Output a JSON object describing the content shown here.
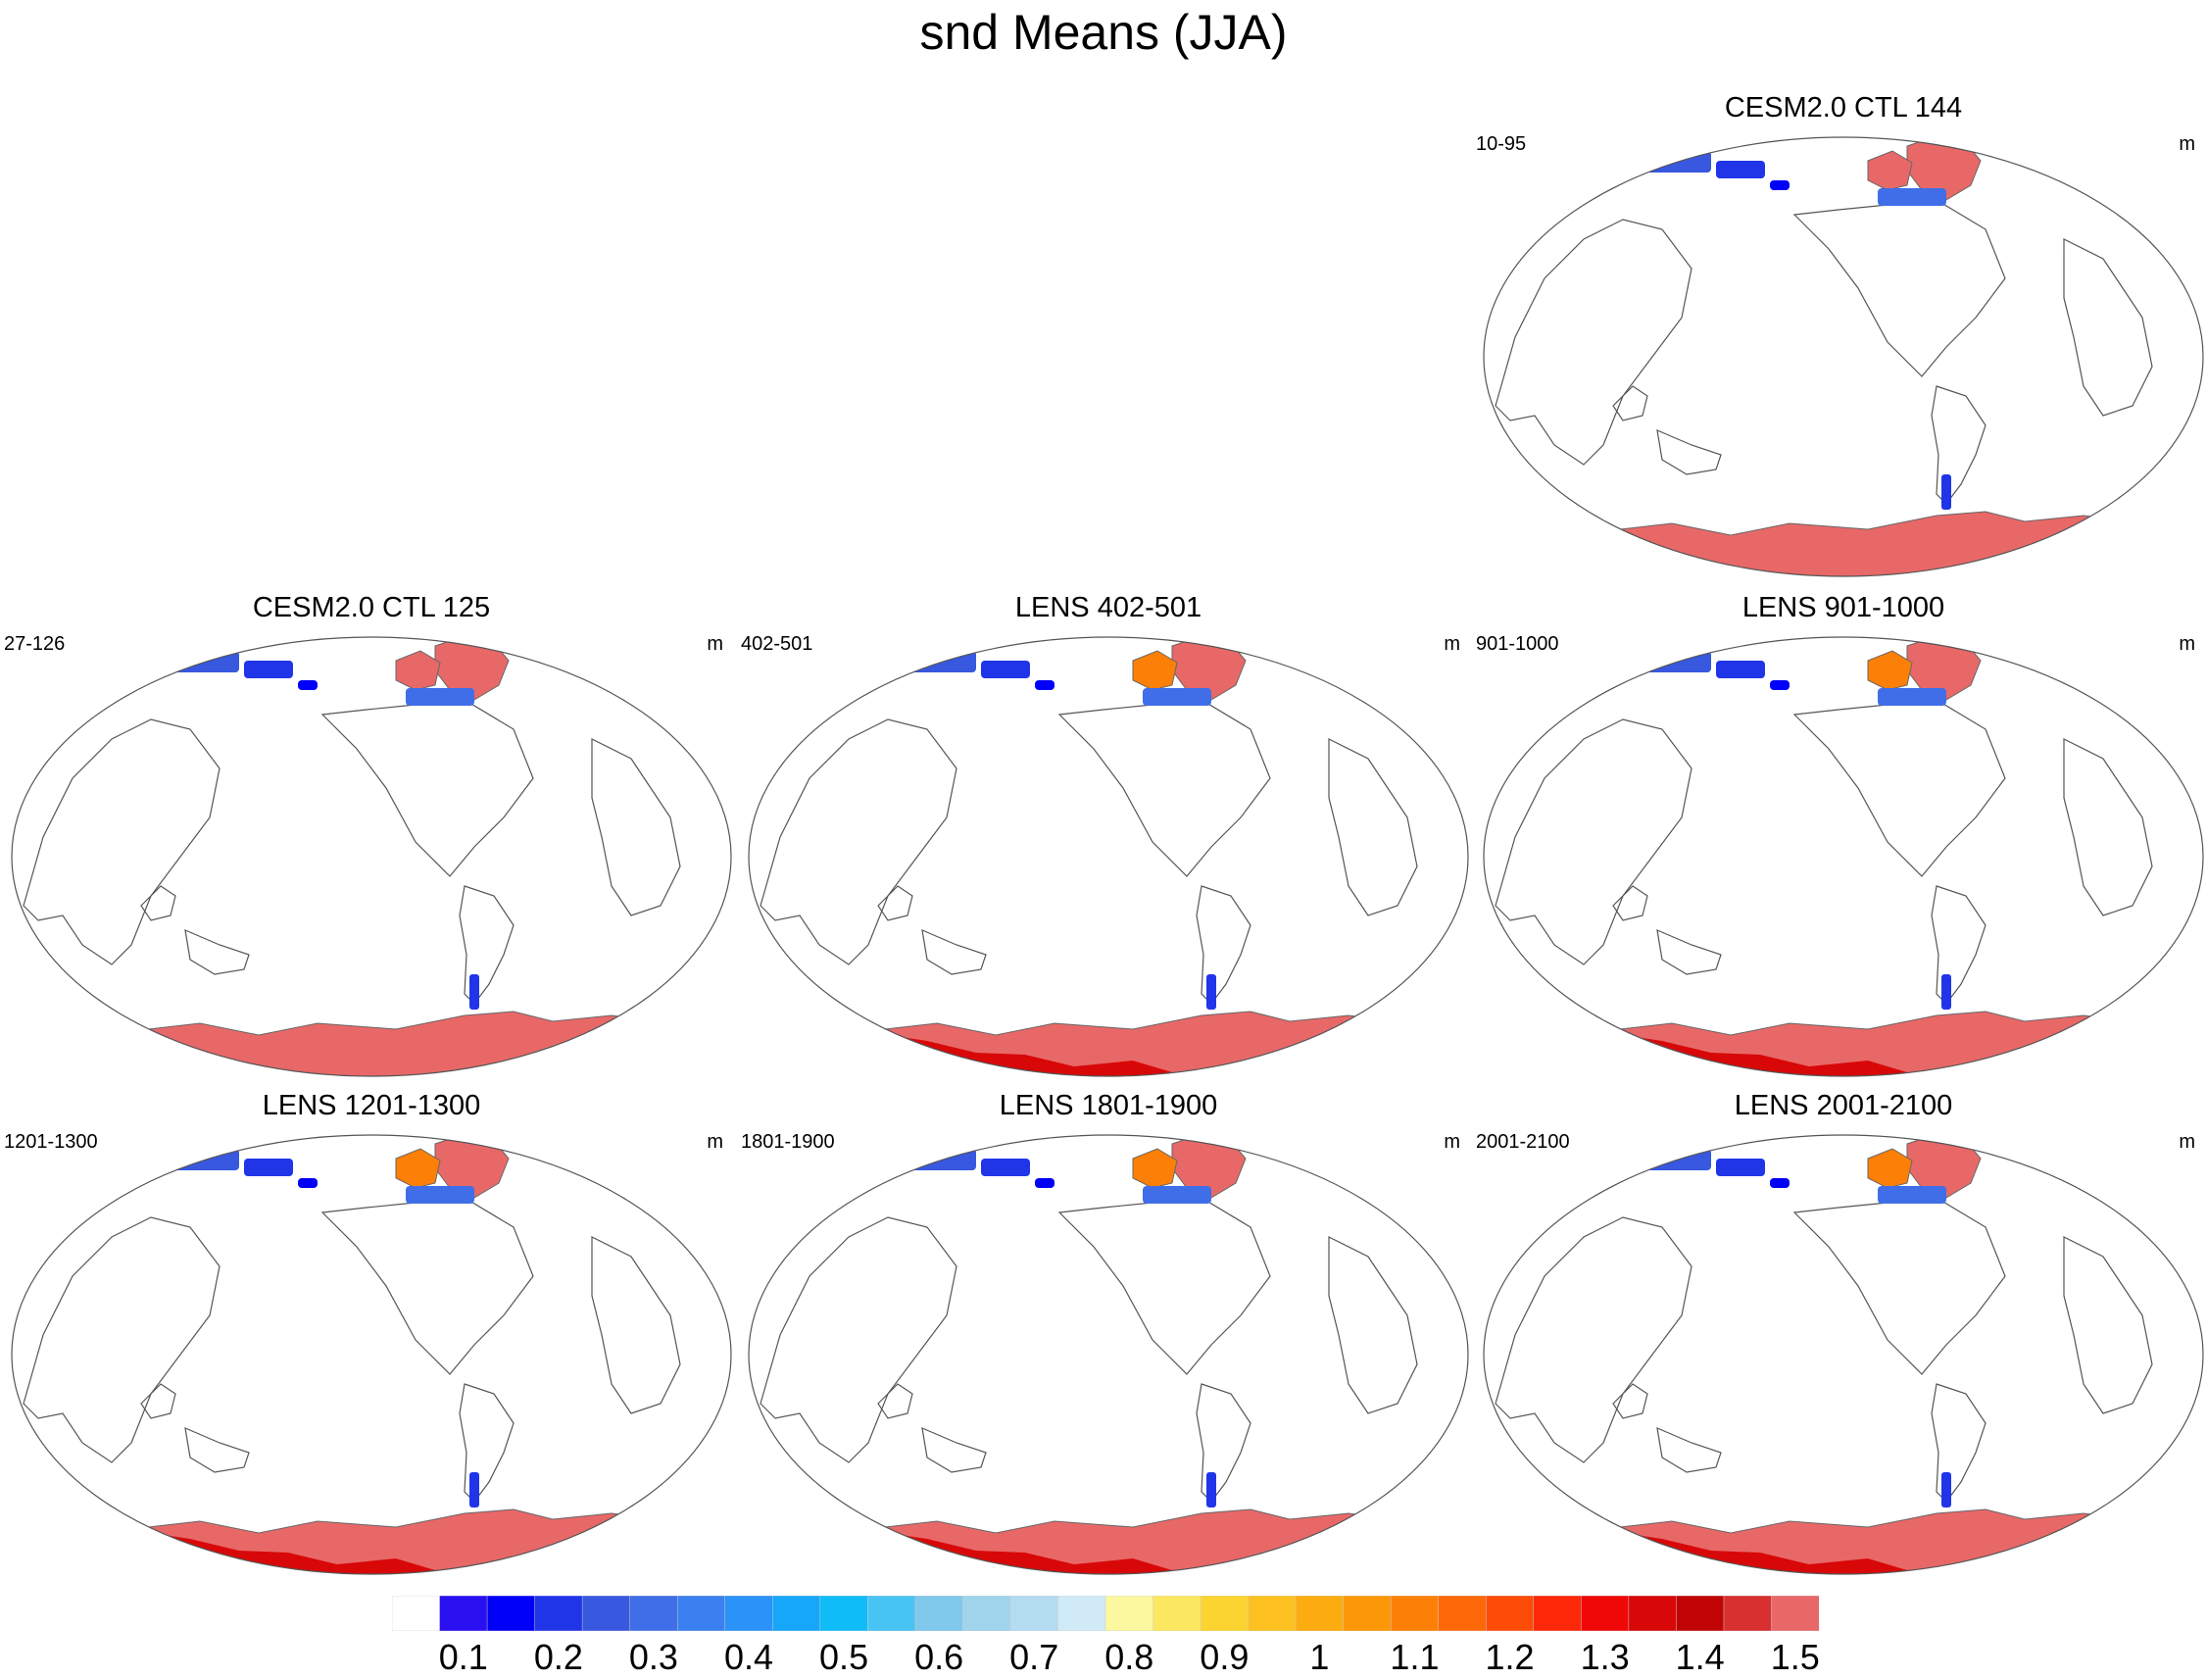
{
  "title": "snd Means (JJA)",
  "chart_data": {
    "type": "map",
    "variable": "snd",
    "season": "JJA",
    "units": "m",
    "panels": [
      {
        "title": "CESM2.0 CTL 144",
        "left_label": "10-95",
        "right_label": "m",
        "antarctic_dark_red": false
      },
      {
        "title": "CESM2.0 CTL 125",
        "left_label": "27-126",
        "right_label": "m",
        "antarctic_dark_red": false
      },
      {
        "title": "LENS 402-501",
        "left_label": "402-501",
        "right_label": "m",
        "antarctic_dark_red": true
      },
      {
        "title": "LENS 901-1000",
        "left_label": "901-1000",
        "right_label": "m",
        "antarctic_dark_red": true
      },
      {
        "title": "LENS 1201-1300",
        "left_label": "1201-1300",
        "right_label": "m",
        "antarctic_dark_red": true
      },
      {
        "title": "LENS 1801-1900",
        "left_label": "1801-1900",
        "right_label": "m",
        "antarctic_dark_red": true
      },
      {
        "title": "LENS 2001-2100",
        "left_label": "2001-2100",
        "right_label": "m",
        "antarctic_dark_red": true
      }
    ],
    "colorbar": {
      "levels": [
        "0.1",
        "0.2",
        "0.3",
        "0.4",
        "0.5",
        "0.6",
        "0.7",
        "0.8",
        "0.9",
        "1",
        "1.1",
        "1.2",
        "1.3",
        "1.4",
        "1.5"
      ],
      "colors": [
        "#ffffff",
        "#2a10f0",
        "#0000f8",
        "#2035e8",
        "#3858e0",
        "#3f6ee8",
        "#3a80f0",
        "#2a92f8",
        "#16a6fa",
        "#10bcf8",
        "#48c4f4",
        "#80c8ec",
        "#a0d4ec",
        "#b4dcf0",
        "#d0eaf8",
        "#fcf8a0",
        "#fce860",
        "#fcd430",
        "#fcc020",
        "#fcac10",
        "#fc9808",
        "#fc8008",
        "#fc6808",
        "#fc4c08",
        "#fc2808",
        "#f00808",
        "#d80808",
        "#c00404",
        "#d83030",
        "#e86868"
      ]
    }
  }
}
